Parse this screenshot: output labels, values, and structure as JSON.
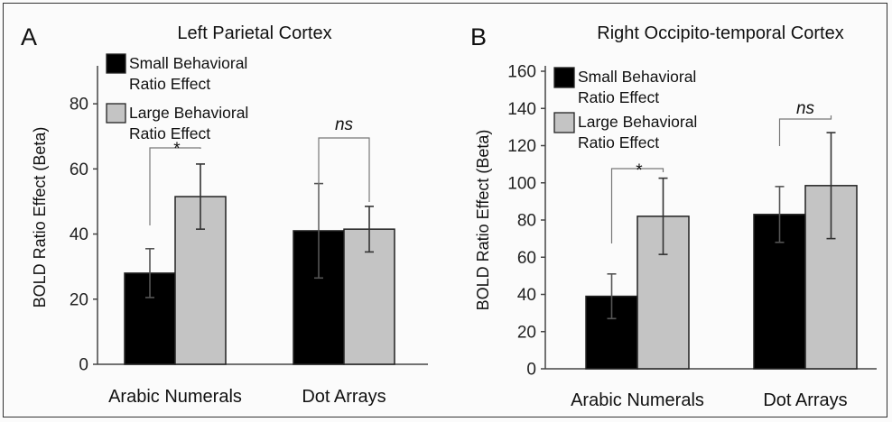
{
  "chart_data": [
    {
      "type": "bar",
      "panel": "A",
      "title": "Left Parietal Cortex",
      "ylabel": "BOLD Ratio Effect (Beta)",
      "xlabel": "",
      "ylim": [
        0,
        90
      ],
      "yticks": [
        0,
        20,
        40,
        60,
        80
      ],
      "categories": [
        "Arabic Numerals",
        "Dot Arrays"
      ],
      "series": [
        {
          "name": "Small Behavioral Ratio Effect",
          "legend_lines": [
            "Small Behavioral",
            "Ratio Effect"
          ],
          "color": "#000000",
          "values": [
            28,
            41
          ],
          "errors": [
            7.5,
            14.5
          ]
        },
        {
          "name": "Large Behavioral Ratio Effect",
          "legend_lines": [
            "Large Behavioral",
            "Ratio Effect"
          ],
          "color": "#c4c4c4",
          "values": [
            51.5,
            41.5
          ],
          "errors": [
            10,
            7
          ]
        }
      ],
      "significance": [
        {
          "category": 0,
          "label": "*",
          "italic": false
        },
        {
          "category": 1,
          "label": "ns",
          "italic": true
        }
      ],
      "legend_position": "top-left",
      "grid": false
    },
    {
      "type": "bar",
      "panel": "B",
      "title": "Right Occipito-temporal Cortex",
      "ylabel": "BOLD Ratio Effect (Beta)",
      "xlabel": "",
      "ylim": [
        0,
        160
      ],
      "yticks": [
        0,
        20,
        40,
        60,
        80,
        100,
        120,
        140,
        160
      ],
      "categories": [
        "Arabic Numerals",
        "Dot Arrays"
      ],
      "series": [
        {
          "name": "Small Behavioral Ratio Effect",
          "legend_lines": [
            "Small Behavioral",
            "Ratio Effect"
          ],
          "color": "#000000",
          "values": [
            39,
            83
          ],
          "errors": [
            12,
            15
          ]
        },
        {
          "name": "Large Behavioral Ratio Effect",
          "legend_lines": [
            "Large Behavioral",
            "Ratio Effect"
          ],
          "color": "#c4c4c4",
          "values": [
            82,
            98.5
          ],
          "errors": [
            20.5,
            28.5
          ]
        }
      ],
      "significance": [
        {
          "category": 0,
          "label": "*",
          "italic": false
        },
        {
          "category": 1,
          "label": "ns",
          "italic": true
        }
      ],
      "legend_position": "top-left",
      "grid": false
    }
  ]
}
